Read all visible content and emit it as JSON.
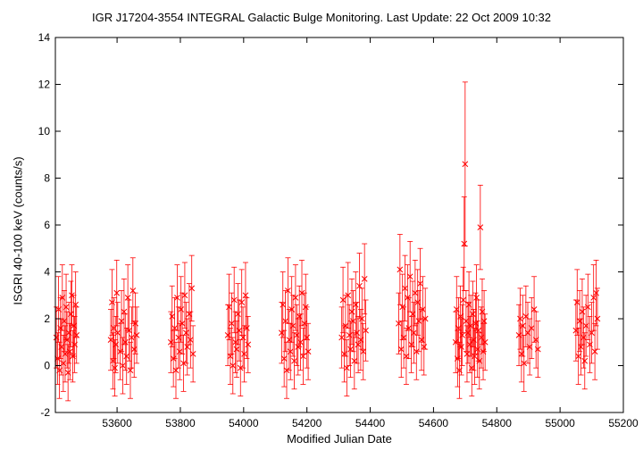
{
  "chart_data": {
    "type": "scatter",
    "title": "IGR J17204-3554   INTEGRAL Galactic Bulge Monitoring.  Last Update: 22 Oct 2009 10:32",
    "xlabel": "Modified Julian Date",
    "ylabel": "ISGRI 40-100 keV (counts/s)",
    "xlim": [
      53405,
      55200
    ],
    "ylim": [
      -2,
      14
    ],
    "xticks": [
      53600,
      53800,
      54000,
      54200,
      54400,
      54600,
      54800,
      55000,
      55200
    ],
    "yticks": [
      -2,
      0,
      2,
      4,
      6,
      8,
      10,
      12,
      14
    ],
    "grid": false,
    "marker": "x",
    "color": "#ff0000",
    "points": [
      [
        53408,
        1.2,
        1.3
      ],
      [
        53412,
        0.3,
        1.1
      ],
      [
        53415,
        2.4,
        1.4
      ],
      [
        53418,
        -0.2,
        1.2
      ],
      [
        53421,
        1.6,
        1.3
      ],
      [
        53424,
        0.8,
        1.2
      ],
      [
        53427,
        2.9,
        1.4
      ],
      [
        53430,
        0.1,
        1.2
      ],
      [
        53433,
        1.9,
        1.3
      ],
      [
        53436,
        0.5,
        1.2
      ],
      [
        53439,
        2.5,
        1.4
      ],
      [
        53442,
        1.1,
        1.2
      ],
      [
        53445,
        -0.3,
        1.2
      ],
      [
        53448,
        1.4,
        1.3
      ],
      [
        53451,
        0.6,
        1.2
      ],
      [
        53454,
        2.2,
        1.4
      ],
      [
        53457,
        3.0,
        1.3
      ],
      [
        53460,
        0.4,
        1.1
      ],
      [
        53463,
        1.7,
        1.3
      ],
      [
        53466,
        0.9,
        1.2
      ],
      [
        53469,
        2.6,
        1.4
      ],
      [
        53472,
        1.3,
        1.2
      ],
      [
        53580,
        1.1,
        1.3
      ],
      [
        53584,
        2.7,
        1.4
      ],
      [
        53587,
        0.2,
        1.2
      ],
      [
        53590,
        1.6,
        1.3
      ],
      [
        53593,
        -0.1,
        1.2
      ],
      [
        53596,
        0.9,
        1.2
      ],
      [
        53599,
        3.1,
        1.4
      ],
      [
        53602,
        1.4,
        1.3
      ],
      [
        53610,
        0.6,
        1.2
      ],
      [
        53614,
        1.9,
        1.3
      ],
      [
        53618,
        0.0,
        1.2
      ],
      [
        53622,
        2.3,
        1.4
      ],
      [
        53626,
        1.0,
        1.2
      ],
      [
        53630,
        0.4,
        1.2
      ],
      [
        53634,
        2.9,
        1.4
      ],
      [
        53638,
        1.5,
        1.3
      ],
      [
        53642,
        -0.2,
        1.2
      ],
      [
        53646,
        1.2,
        1.3
      ],
      [
        53650,
        3.2,
        1.4
      ],
      [
        53654,
        0.7,
        1.2
      ],
      [
        53658,
        1.8,
        1.3
      ],
      [
        53662,
        1.3,
        1.2
      ],
      [
        53770,
        1.0,
        1.3
      ],
      [
        53774,
        2.1,
        1.3
      ],
      [
        53778,
        0.3,
        1.2
      ],
      [
        53782,
        1.6,
        1.3
      ],
      [
        53786,
        -0.2,
        1.2
      ],
      [
        53790,
        2.9,
        1.4
      ],
      [
        53794,
        1.2,
        1.3
      ],
      [
        53798,
        0.6,
        1.2
      ],
      [
        53802,
        2.4,
        1.4
      ],
      [
        53806,
        1.8,
        1.3
      ],
      [
        53810,
        0.1,
        1.2
      ],
      [
        53814,
        3.0,
        1.4
      ],
      [
        53818,
        1.4,
        1.3
      ],
      [
        53822,
        0.8,
        1.2
      ],
      [
        53828,
        2.2,
        1.3
      ],
      [
        53832,
        1.1,
        1.2
      ],
      [
        53836,
        3.3,
        1.4
      ],
      [
        53840,
        0.5,
        1.2
      ],
      [
        53950,
        1.3,
        1.3
      ],
      [
        53954,
        2.5,
        1.4
      ],
      [
        53958,
        0.4,
        1.2
      ],
      [
        53962,
        1.8,
        1.3
      ],
      [
        53966,
        0.0,
        1.2
      ],
      [
        53970,
        2.8,
        1.4
      ],
      [
        53974,
        1.0,
        1.3
      ],
      [
        53978,
        0.7,
        1.2
      ],
      [
        53982,
        2.2,
        1.3
      ],
      [
        53986,
        1.5,
        1.3
      ],
      [
        53990,
        -0.1,
        1.2
      ],
      [
        53994,
        2.7,
        1.4
      ],
      [
        53998,
        1.2,
        1.3
      ],
      [
        54002,
        0.5,
        1.2
      ],
      [
        54006,
        3.0,
        1.4
      ],
      [
        54010,
        1.6,
        1.3
      ],
      [
        54014,
        0.9,
        1.2
      ],
      [
        54120,
        1.4,
        1.3
      ],
      [
        54124,
        2.6,
        1.4
      ],
      [
        54128,
        0.3,
        1.2
      ],
      [
        54132,
        1.9,
        1.3
      ],
      [
        54136,
        -0.2,
        1.2
      ],
      [
        54140,
        3.2,
        1.4
      ],
      [
        54144,
        1.1,
        1.3
      ],
      [
        54148,
        0.6,
        1.2
      ],
      [
        54152,
        2.4,
        1.4
      ],
      [
        54156,
        1.7,
        1.3
      ],
      [
        54160,
        0.2,
        1.2
      ],
      [
        54164,
        2.9,
        1.4
      ],
      [
        54168,
        1.3,
        1.3
      ],
      [
        54172,
        0.8,
        1.2
      ],
      [
        54176,
        2.1,
        1.3
      ],
      [
        54180,
        1.0,
        1.2
      ],
      [
        54184,
        3.1,
        1.4
      ],
      [
        54188,
        0.4,
        1.2
      ],
      [
        54192,
        1.8,
        1.3
      ],
      [
        54196,
        2.5,
        1.4
      ],
      [
        54200,
        1.2,
        1.3
      ],
      [
        54204,
        0.6,
        1.2
      ],
      [
        54310,
        1.2,
        1.3
      ],
      [
        54314,
        2.8,
        1.4
      ],
      [
        54318,
        0.5,
        1.2
      ],
      [
        54322,
        1.7,
        1.3
      ],
      [
        54326,
        -0.1,
        1.2
      ],
      [
        54330,
        3.0,
        1.4
      ],
      [
        54334,
        1.3,
        1.3
      ],
      [
        54338,
        0.7,
        1.2
      ],
      [
        54342,
        2.3,
        1.4
      ],
      [
        54346,
        1.9,
        1.3
      ],
      [
        54350,
        0.2,
        1.2
      ],
      [
        54354,
        2.6,
        1.4
      ],
      [
        54358,
        1.4,
        1.3
      ],
      [
        54362,
        0.9,
        1.2
      ],
      [
        54366,
        3.4,
        1.4
      ],
      [
        54370,
        1.1,
        1.3
      ],
      [
        54374,
        2.0,
        1.3
      ],
      [
        54378,
        0.6,
        1.2
      ],
      [
        54382,
        3.7,
        1.5
      ],
      [
        54386,
        1.5,
        1.3
      ],
      [
        54490,
        1.8,
        1.3
      ],
      [
        54494,
        4.1,
        1.5
      ],
      [
        54498,
        0.7,
        1.2
      ],
      [
        54502,
        2.5,
        1.4
      ],
      [
        54506,
        1.2,
        1.3
      ],
      [
        54510,
        3.3,
        1.4
      ],
      [
        54514,
        0.4,
        1.2
      ],
      [
        54518,
        2.9,
        1.4
      ],
      [
        54522,
        1.6,
        1.3
      ],
      [
        54526,
        3.8,
        1.5
      ],
      [
        54530,
        0.9,
        1.2
      ],
      [
        54534,
        2.2,
        1.4
      ],
      [
        54538,
        1.4,
        1.3
      ],
      [
        54542,
        3.1,
        1.4
      ],
      [
        54546,
        0.6,
        1.2
      ],
      [
        54550,
        2.7,
        1.4
      ],
      [
        54554,
        1.9,
        1.3
      ],
      [
        54558,
        3.5,
        1.5
      ],
      [
        54562,
        1.1,
        1.3
      ],
      [
        54566,
        2.4,
        1.4
      ],
      [
        54570,
        0.8,
        1.2
      ],
      [
        54574,
        2.0,
        1.3
      ],
      [
        54670,
        1.0,
        1.3
      ],
      [
        54673,
        2.4,
        1.4
      ],
      [
        54676,
        0.3,
        1.2
      ],
      [
        54679,
        1.6,
        1.3
      ],
      [
        54682,
        -0.2,
        1.2
      ],
      [
        54685,
        2.1,
        1.3
      ],
      [
        54688,
        0.8,
        1.2
      ],
      [
        54691,
        1.3,
        1.3
      ],
      [
        54694,
        2.8,
        1.4
      ],
      [
        54697,
        5.2,
        2.0
      ],
      [
        54700,
        8.6,
        3.5
      ],
      [
        54703,
        1.9,
        1.3
      ],
      [
        54706,
        0.5,
        1.2
      ],
      [
        54709,
        1.4,
        1.3
      ],
      [
        54712,
        2.6,
        1.4
      ],
      [
        54715,
        0.9,
        1.2
      ],
      [
        54718,
        1.7,
        1.3
      ],
      [
        54721,
        -0.1,
        1.2
      ],
      [
        54724,
        2.2,
        1.4
      ],
      [
        54727,
        1.1,
        1.3
      ],
      [
        54730,
        0.4,
        1.2
      ],
      [
        54733,
        1.8,
        1.3
      ],
      [
        54736,
        2.9,
        1.4
      ],
      [
        54739,
        0.7,
        1.2
      ],
      [
        54742,
        1.5,
        1.3
      ],
      [
        54745,
        0.2,
        1.2
      ],
      [
        54748,
        5.9,
        1.8
      ],
      [
        54751,
        1.2,
        1.3
      ],
      [
        54754,
        2.3,
        1.4
      ],
      [
        54757,
        0.6,
        1.2
      ],
      [
        54760,
        1.9,
        1.3
      ],
      [
        54763,
        1.0,
        1.2
      ],
      [
        54870,
        1.3,
        1.3
      ],
      [
        54874,
        2.0,
        1.3
      ],
      [
        54878,
        0.5,
        1.2
      ],
      [
        54882,
        1.7,
        1.3
      ],
      [
        54886,
        0.1,
        1.2
      ],
      [
        54892,
        2.1,
        1.3
      ],
      [
        54898,
        1.4,
        1.3
      ],
      [
        54904,
        0.8,
        1.2
      ],
      [
        54910,
        1.6,
        1.3
      ],
      [
        54918,
        2.4,
        1.4
      ],
      [
        54924,
        1.1,
        1.2
      ],
      [
        54930,
        0.7,
        1.2
      ],
      [
        55050,
        1.5,
        1.3
      ],
      [
        55054,
        2.7,
        1.4
      ],
      [
        55058,
        0.4,
        1.2
      ],
      [
        55062,
        1.9,
        1.3
      ],
      [
        55066,
        0.8,
        1.2
      ],
      [
        55070,
        2.3,
        1.4
      ],
      [
        55074,
        1.2,
        1.3
      ],
      [
        55078,
        0.2,
        1.2
      ],
      [
        55082,
        1.7,
        1.3
      ],
      [
        55088,
        2.5,
        1.4
      ],
      [
        55094,
        0.9,
        1.2
      ],
      [
        55100,
        1.4,
        1.3
      ],
      [
        55106,
        2.9,
        1.4
      ],
      [
        55110,
        0.6,
        1.2
      ],
      [
        55114,
        3.1,
        1.4
      ],
      [
        55118,
        2.0,
        1.3
      ]
    ]
  }
}
